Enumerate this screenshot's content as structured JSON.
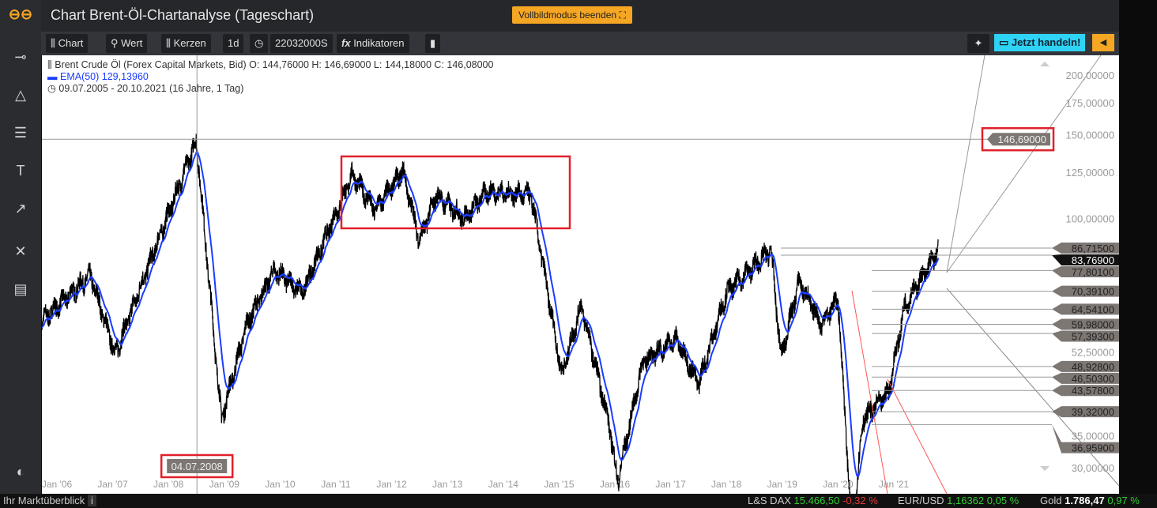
{
  "app": {
    "title": "Chart Brent-Öl-Chartanalyse (Tageschart)",
    "fullscreen_label": "Vollbildmodus beenden"
  },
  "toolbar": {
    "chart": "Chart",
    "wert": "Wert",
    "kerzen": "Kerzen",
    "interval": "1d",
    "clock_value": "22032000S",
    "indikatoren": "Indikatoren",
    "trade": "Jetzt handeln!"
  },
  "legend": {
    "instrument": "Brent Crude Öl (Forex Capital Markets, Bid)",
    "ohlc": "O: 144,76000  H: 146,69000  L: 144,18000  C: 146,08000",
    "ema": "EMA(50)  129,13960",
    "range": "09.07.2005 - 20.10.2021   (16 Jahre, 1 Tag)"
  },
  "crosshair": {
    "date_label": "04.07.2008",
    "price_label": "146,69000"
  },
  "bottom": {
    "overview": "Ihr Marktüberblick",
    "dax_name": "L&S DAX",
    "dax_val": "15.466,50",
    "dax_chg": "-0,32 %",
    "eur_name": "EUR/USD",
    "eur_val": "1,16362",
    "eur_chg": "0,05 %",
    "gold_name": "Gold",
    "gold_val": "1.786,47",
    "gold_chg": "0,97 %"
  },
  "colors": {
    "accent": "#f5a623",
    "trade": "#2ed3f5",
    "ema": "#1a3cff",
    "highlight": "#e0202a",
    "up": "#33cc33",
    "down": "#ee3333"
  },
  "chart_data": {
    "type": "line",
    "yscale": "log",
    "ylim": [
      27,
      215
    ],
    "x_ticks": [
      "Jan '06",
      "Jan '07",
      "Jan '08",
      "Jan '09",
      "Jan '10",
      "Jan '11",
      "Jan '12",
      "Jan '13",
      "Jan '14",
      "Jan '15",
      "Jan '16",
      "Jan '17",
      "Jan '18",
      "Jan '19",
      "Jan '20",
      "Jan '21"
    ],
    "y_ticks": [
      "200,00000",
      "175,00000",
      "150,00000",
      "125,00000",
      "100,00000",
      "52,50000",
      "35,00000",
      "30,00000"
    ],
    "y_tick_values": [
      200,
      175,
      150,
      125,
      100,
      52.5,
      35,
      30
    ],
    "price_labels": [
      "86,71500",
      "83,76900",
      "77,80100",
      "70,39100",
      "64,54100",
      "59,98000",
      "57,39300",
      "48,92800",
      "46,50300",
      "43,57800",
      "39,32000",
      "36,95900"
    ],
    "price_label_values": [
      86.715,
      83.769,
      77.801,
      70.391,
      64.541,
      59.98,
      57.393,
      48.928,
      46.503,
      43.578,
      39.32,
      36.959
    ],
    "series": [
      {
        "name": "Brent Crude Öl",
        "approx_points": [
          [
            2005.52,
            58
          ],
          [
            2006.6,
            76
          ],
          [
            2007.05,
            52
          ],
          [
            2007.5,
            72
          ],
          [
            2008.5,
            146
          ],
          [
            2008.95,
            38
          ],
          [
            2009.4,
            60
          ],
          [
            2009.9,
            78
          ],
          [
            2010.4,
            70
          ],
          [
            2011.3,
            124
          ],
          [
            2011.7,
            104
          ],
          [
            2012.2,
            126
          ],
          [
            2012.5,
            90
          ],
          [
            2012.8,
            112
          ],
          [
            2013.3,
            100
          ],
          [
            2013.7,
            114
          ],
          [
            2014.5,
            112
          ],
          [
            2015.05,
            47
          ],
          [
            2015.4,
            66
          ],
          [
            2015.9,
            37
          ],
          [
            2016.05,
            28
          ],
          [
            2016.5,
            50
          ],
          [
            2017.1,
            56
          ],
          [
            2017.5,
            45
          ],
          [
            2018.0,
            70
          ],
          [
            2018.8,
            86
          ],
          [
            2018.98,
            51
          ],
          [
            2019.3,
            74
          ],
          [
            2019.7,
            60
          ],
          [
            2020.0,
            68
          ],
          [
            2020.25,
            22
          ],
          [
            2020.45,
            38
          ],
          [
            2020.9,
            43
          ],
          [
            2021.2,
            66
          ],
          [
            2021.5,
            75
          ],
          [
            2021.8,
            86
          ]
        ]
      },
      {
        "name": "EMA(50)"
      }
    ]
  }
}
